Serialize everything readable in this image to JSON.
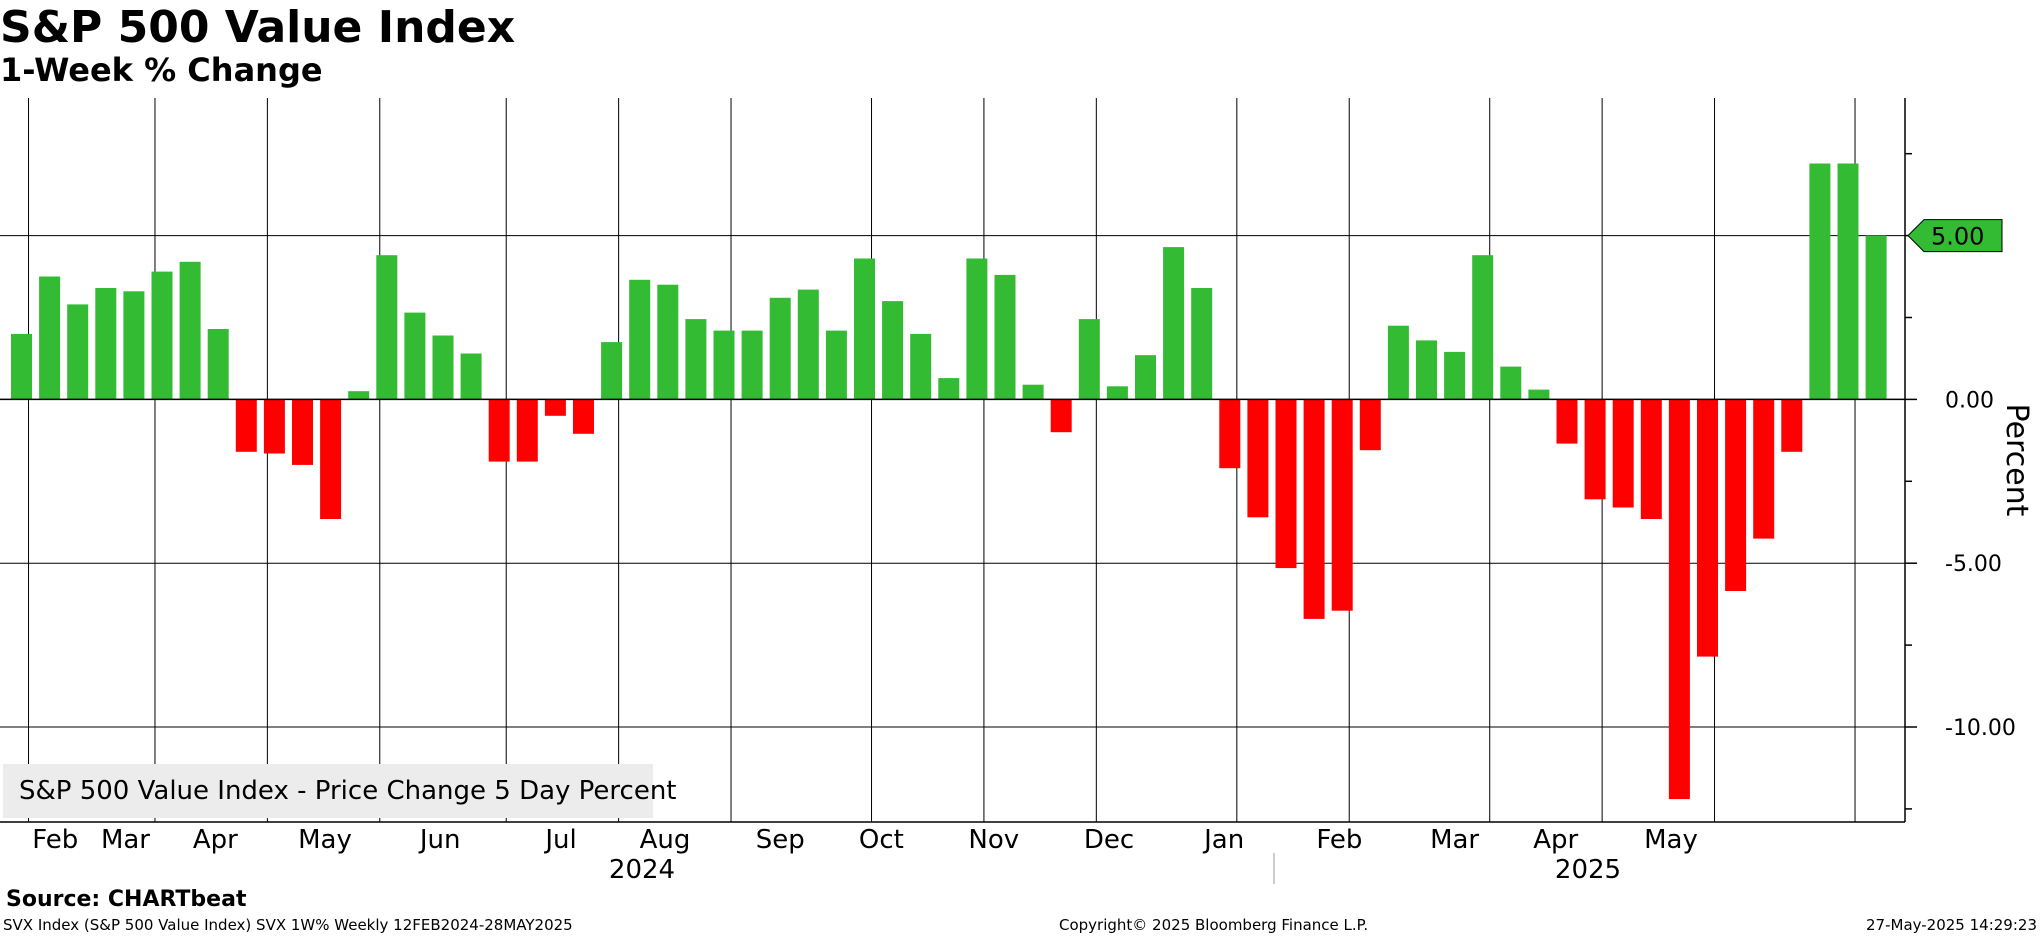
{
  "header": {
    "title": "S&P 500 Value Index",
    "subtitle": "1-Week % Change"
  },
  "legend": {
    "label": "S&P 500 Value Index - Price Change 5 Day Percent"
  },
  "footer": {
    "source": "Source: CHARTbeat",
    "descriptor": "SVX Index (S&P 500 Value Index) SVX 1W%  Weekly 12FEB2024-28MAY2025",
    "copyright": "Copyright© 2025 Bloomberg Finance L.P.",
    "timestamp": "27-May-2025 14:29:23"
  },
  "colors": {
    "positive": "#33bb33",
    "negative": "#ff0000",
    "grid": "#000000",
    "current_tag": "#33bb33"
  },
  "chart_data": {
    "type": "bar",
    "title": "S&P 500 Value Index",
    "subtitle": "1-Week % Change",
    "ylabel": "Percent",
    "ylim": [
      -12.9,
      9.2
    ],
    "y_ticks": [
      5.0,
      0.0,
      -5.0,
      -10.0
    ],
    "y_tick_labels": [
      "5.00",
      "0.00",
      "-5.00",
      "-10.00"
    ],
    "current_value_label": "5.00",
    "current_value": 5.0,
    "grid": true,
    "legend_position": "bottom-left",
    "x_month_labels": [
      "Feb",
      "Mar",
      "Apr",
      "May",
      "Jun",
      "Jul",
      "Aug",
      "Sep",
      "Oct",
      "Nov",
      "Dec",
      "Jan",
      "Feb",
      "Mar",
      "Apr",
      "May"
    ],
    "x_year_labels": [
      "2024",
      "2025"
    ],
    "series": [
      {
        "name": "S&P 500 Value Index - Price Change 5 Day Percent",
        "values": [
          2.0,
          3.75,
          2.9,
          3.4,
          3.3,
          3.9,
          4.2,
          2.15,
          -1.6,
          -1.65,
          -2.0,
          -3.65,
          0.25,
          4.4,
          2.65,
          1.95,
          1.4,
          -1.9,
          -1.9,
          -0.5,
          -1.05,
          1.75,
          3.65,
          3.5,
          2.45,
          2.1,
          2.1,
          3.1,
          3.35,
          2.1,
          4.3,
          3.0,
          2.0,
          0.65,
          4.3,
          3.8,
          0.45,
          -1.0,
          2.45,
          0.4,
          1.35,
          4.65,
          3.4,
          -2.1,
          -3.6,
          -5.15,
          -6.7,
          -6.45,
          -1.55,
          2.25,
          1.8,
          1.45,
          4.4,
          1.0,
          0.3,
          -1.35,
          -3.05,
          -3.3,
          -3.65,
          -12.2,
          -7.85,
          -5.85,
          -4.25,
          -1.6,
          7.2,
          7.2,
          5.0
        ]
      }
    ]
  }
}
